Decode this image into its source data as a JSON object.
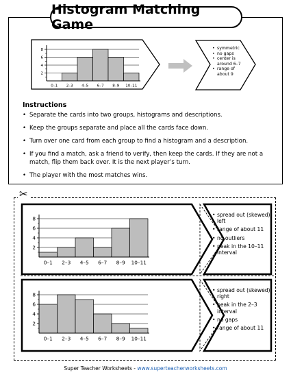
{
  "title": "Histogram Matching Game",
  "example": {
    "bins": [
      "0–1",
      "2–3",
      "4–5",
      "6–7",
      "8–9",
      "10–11"
    ],
    "values": [
      0,
      2,
      6,
      8,
      6,
      2
    ],
    "y_ticks": [
      "8",
      "6",
      "4",
      "2"
    ],
    "description": [
      "symmetric",
      "no gaps",
      "center is around 6–7",
      "range of about 9"
    ]
  },
  "instructions": {
    "heading": "Instructions",
    "items": [
      "Separate the cards into two groups, histograms and descriptions.",
      "Keep the groups separate and place all the cards face down.",
      "Turn over one card from each group to find a histogram and a description.",
      "If you find a match, ask a friend to verify, then keep the cards. If they are not a match, flip them back over. It is the next player’s turn.",
      "The player with the most matches wins."
    ]
  },
  "cards": [
    {
      "bins": [
        "0–1",
        "2–3",
        "4–5",
        "6–7",
        "8–9",
        "10–11"
      ],
      "values": [
        1,
        2,
        4,
        2,
        6,
        8
      ],
      "y_ticks": [
        "8",
        "6",
        "4",
        "2"
      ],
      "description": [
        "spread out (skewed) left",
        "range of about 11",
        "no outliers",
        "peak in the 10–11 interval"
      ]
    },
    {
      "bins": [
        "0–1",
        "2–3",
        "4–5",
        "6–7",
        "8–9",
        "10–11"
      ],
      "values": [
        6,
        8,
        7,
        4,
        2,
        1
      ],
      "y_ticks": [
        "8",
        "6",
        "4",
        "2"
      ],
      "description": [
        "spread out (skewed) right",
        "peak in the 2–3 interval",
        "no gaps",
        "range of about 11"
      ]
    }
  ],
  "footer": {
    "text": "Super Teacher Worksheets - ",
    "link": "www.superteacherworksheets.com"
  }
}
